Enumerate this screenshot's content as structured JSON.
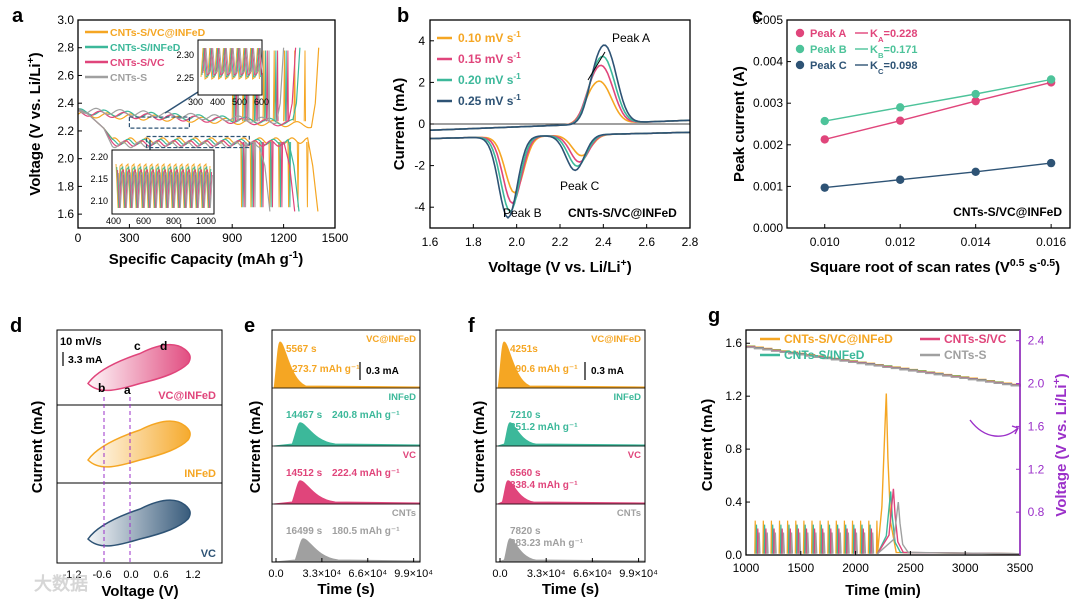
{
  "panel_labels": [
    "a",
    "b",
    "c",
    "d",
    "e",
    "f",
    "g"
  ],
  "watermark": "大数据",
  "chart_data": [
    {
      "id": "a",
      "type": "line",
      "xlabel": "Specific Capacity (mAh g-1)",
      "ylabel": "Voltage (V vs. Li/Li+)",
      "xlim": [
        0,
        1500
      ],
      "ylim": [
        1.5,
        3.0
      ],
      "xticks": [
        0,
        300,
        600,
        900,
        1200,
        1500
      ],
      "yticks": [
        1.6,
        1.8,
        2.0,
        2.2,
        2.4,
        2.6,
        2.8,
        3.0
      ],
      "legend": [
        {
          "name": "CNTs-S/VC@INFeD",
          "color": "#F5A623"
        },
        {
          "name": "CNTs-S/INFeD",
          "color": "#3CB89A"
        },
        {
          "name": "CNTs-S/VC",
          "color": "#E0457B"
        },
        {
          "name": "CNTs-S",
          "color": "#A0A0A0"
        }
      ],
      "series": [
        {
          "name": "CNTs-S/VC@INFeD",
          "color": "#F5A623",
          "charge_end": 1405,
          "discharge_end": 1400,
          "upper_plateau": 2.32,
          "lower_plateau": 2.13
        },
        {
          "name": "CNTs-S/INFeD",
          "color": "#3CB89A",
          "charge_end": 1295,
          "discharge_end": 1290,
          "upper_plateau": 2.34,
          "lower_plateau": 2.12
        },
        {
          "name": "CNTs-S/VC",
          "color": "#E0457B",
          "charge_end": 1270,
          "discharge_end": 1265,
          "upper_plateau": 2.33,
          "lower_plateau": 2.11
        },
        {
          "name": "CNTs-S",
          "color": "#A0A0A0",
          "charge_end": 1200,
          "discharge_end": 1120,
          "upper_plateau": 2.35,
          "lower_plateau": 2.1
        }
      ],
      "insets": [
        {
          "xticks": [
            300,
            400,
            500,
            600
          ],
          "yticks": [
            2.25,
            2.3
          ]
        },
        {
          "xticks": [
            400,
            600,
            800,
            1000
          ],
          "yticks": [
            2.1,
            2.15,
            2.2
          ]
        }
      ]
    },
    {
      "id": "b",
      "type": "line",
      "xlabel": "Voltage (V vs. Li/Li+)",
      "ylabel": "Current (mA)",
      "xlim": [
        1.6,
        2.8
      ],
      "ylim": [
        -5,
        5
      ],
      "xticks": [
        1.6,
        1.8,
        2.0,
        2.2,
        2.4,
        2.6,
        2.8
      ],
      "yticks": [
        -4,
        -2,
        0,
        2,
        4
      ],
      "sample_label": "CNTs-S/VC@INFeD",
      "annotations": [
        "Peak A",
        "Peak B",
        "Peak C"
      ],
      "series": [
        {
          "name": "0.10 mV s-1",
          "color": "#F5A623",
          "peakA": 1.9,
          "peakB": -2.7,
          "peakC": -1.0
        },
        {
          "name": "0.15 mV s-1",
          "color": "#E0457B",
          "peakA": 2.6,
          "peakB": -3.2,
          "peakC": -1.3
        },
        {
          "name": "0.20 mV s-1",
          "color": "#3CB89A",
          "peakA": 3.0,
          "peakB": -3.6,
          "peakC": -1.5
        },
        {
          "name": "0.25 mV s-1",
          "color": "#2E5375",
          "peakA": 3.5,
          "peakB": -3.9,
          "peakC": -1.7
        }
      ]
    },
    {
      "id": "c",
      "type": "scatter",
      "xlabel": "Square root of scan rates (V0.5 s-0.5)",
      "ylabel": "Peak current (A)",
      "xlim": [
        0.009,
        0.0165
      ],
      "ylim": [
        0,
        0.005
      ],
      "xticks": [
        "0.010",
        "0.012",
        "0.014",
        "0.016"
      ],
      "yticks": [
        "0.000",
        "0.001",
        "0.002",
        "0.003",
        "0.004",
        "0.005"
      ],
      "sample_label": "CNTs-S/VC@INFeD",
      "x": [
        0.01,
        0.012,
        0.014,
        0.016
      ],
      "series": [
        {
          "name": "Peak A",
          "k": "KA=0.228",
          "color": "#E0457B",
          "values": [
            0.00213,
            0.00258,
            0.00305,
            0.0035
          ]
        },
        {
          "name": "Peak B",
          "k": "KB=0.171",
          "color": "#4DC39A",
          "values": [
            0.00257,
            0.0029,
            0.00322,
            0.00357
          ]
        },
        {
          "name": "Peak C",
          "k": "KC=0.098",
          "color": "#2E5375",
          "values": [
            0.00097,
            0.00116,
            0.00135,
            0.00156
          ]
        }
      ]
    },
    {
      "id": "d",
      "type": "line",
      "xlabel": "Voltage (V)",
      "ylabel": "Current (mA)",
      "xticks": [
        "-1.2",
        "-0.6",
        "0.0",
        "0.6",
        "1.2"
      ],
      "scan_rate": "10 mV/s",
      "scale_bar": "3.3 mA",
      "point_labels": [
        "a",
        "b",
        "c",
        "d"
      ],
      "series": [
        {
          "name": "VC@INFeD",
          "color": "#E0457B"
        },
        {
          "name": "INFeD",
          "color": "#F5A623"
        },
        {
          "name": "VC",
          "color": "#2E5375"
        }
      ]
    },
    {
      "id": "e",
      "type": "area",
      "xlabel": "Time (s)",
      "ylabel": "Current (mA)",
      "xticks": [
        "0.0",
        "3.3×10⁴",
        "6.6×10⁴",
        "9.9×10⁴"
      ],
      "scale_bar": "0.3 mA",
      "series": [
        {
          "name": "VC@INFeD",
          "color": "#F5A623",
          "time": "5567 s",
          "capacity": "273.7 mAh g⁻¹"
        },
        {
          "name": "INFeD",
          "color": "#3CB89A",
          "time": "14467 s",
          "capacity": "240.8 mAh g⁻¹"
        },
        {
          "name": "VC",
          "color": "#E0457B",
          "time": "14512 s",
          "capacity": "222.4 mAh g⁻¹"
        },
        {
          "name": "CNTs",
          "color": "#A0A0A0",
          "time": "16499 s",
          "capacity": "180.5 mAh g⁻¹"
        }
      ]
    },
    {
      "id": "f",
      "type": "area",
      "xlabel": "Time (s)",
      "ylabel": "Current (mA)",
      "xticks": [
        "0.0",
        "3.3×10⁴",
        "6.6×10⁴",
        "9.9×10⁴"
      ],
      "scale_bar": "0.3 mA",
      "series": [
        {
          "name": "VC@INFeD",
          "color": "#F5A623",
          "time": "4251s",
          "capacity": "390.6 mAh g⁻¹"
        },
        {
          "name": "INFeD",
          "color": "#3CB89A",
          "time": "7210 s",
          "capacity": "351.2 mAh g⁻¹"
        },
        {
          "name": "VC",
          "color": "#E0457B",
          "time": "6560 s",
          "capacity": "338.4 mAh g⁻¹"
        },
        {
          "name": "CNTs",
          "color": "#A0A0A0",
          "time": "7820 s",
          "capacity": "283.23 mAh g⁻¹"
        }
      ]
    },
    {
      "id": "g",
      "type": "line",
      "xlabel": "Time (min)",
      "ylabel": "Current (mA)",
      "ylabel_right": "Voltage (V vs. Li/Li+)",
      "xlim": [
        1000,
        3500
      ],
      "ylim": [
        0,
        1.7
      ],
      "ylim_right": [
        0.4,
        2.5
      ],
      "xticks": [
        1000,
        1500,
        2000,
        2500,
        3000,
        3500
      ],
      "yticks": [
        0.0,
        0.4,
        0.8,
        1.2,
        1.6
      ],
      "yticks_right": [
        0.8,
        1.2,
        1.6,
        2.0,
        2.4
      ],
      "series": [
        {
          "name": "CNTs-S/VC@INFeD",
          "color": "#F5A623",
          "peak_time": 2280,
          "peak_current": 1.22
        },
        {
          "name": "CNTs-S/INFeD",
          "color": "#3CB89A",
          "peak_time": 2320,
          "peak_current": 0.48
        },
        {
          "name": "CNTs-S/VC",
          "color": "#E0457B",
          "peak_time": 2345,
          "peak_current": 0.5
        },
        {
          "name": "CNTs-S",
          "color": "#A0A0A0",
          "peak_time": 2390,
          "peak_current": 0.4
        }
      ],
      "voltage_start": 2.35,
      "voltage_end": 1.98
    }
  ]
}
